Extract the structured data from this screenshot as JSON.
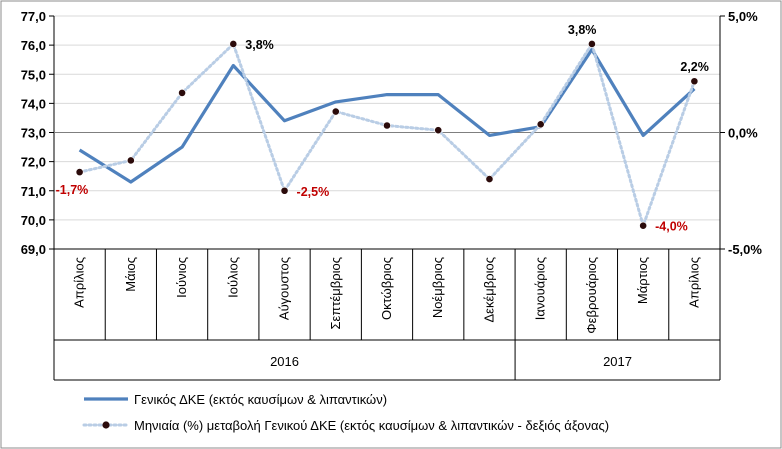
{
  "chart_data": {
    "type": "line",
    "categories": [
      "Απρίλιος",
      "Μάιος",
      "Ιούνιος",
      "Ιούλιος",
      "Αύγουστος",
      "Σεπτέμβριος",
      "Οκτώβριος",
      "Νοέμβριος",
      "Δεκέμβριος",
      "Ιανουάριος",
      "Φεβρουάριος",
      "Μάρτιος",
      "Απρίλιος"
    ],
    "year_groups": [
      {
        "label": "2016",
        "start": 0,
        "end": 8
      },
      {
        "label": "2017",
        "start": 9,
        "end": 12
      }
    ],
    "series": [
      {
        "name": "Γενικός ΔΚΕ (εκτός καυσίμων & λιπαντικών)",
        "axis": "left",
        "style": "solid",
        "color": "#4f81bd",
        "values": [
          72.4,
          71.3,
          72.5,
          75.3,
          73.4,
          74.05,
          74.3,
          74.3,
          72.9,
          73.2,
          75.85,
          72.9,
          74.5
        ]
      },
      {
        "name": "Μηνιαία (%) μεταβολή Γενικού ΔΚΕ (εκτός καυσίμων & λιπαντικών - δεξιός άξονας)",
        "axis": "right",
        "style": "dotted",
        "color": "#b9cde5",
        "marker_color": "#2b0b0b",
        "values": [
          -1.7,
          -1.2,
          1.7,
          3.8,
          -2.5,
          0.9,
          0.3,
          0.1,
          -2.0,
          0.35,
          3.8,
          -4.0,
          2.2
        ]
      }
    ],
    "data_labels": [
      {
        "index": 0,
        "text": "-1,7%",
        "color": "#c00000"
      },
      {
        "index": 3,
        "text": "3,8%",
        "color": "#000000"
      },
      {
        "index": 4,
        "text": "-2,5%",
        "color": "#c00000"
      },
      {
        "index": 10,
        "text": "3,8%",
        "color": "#000000"
      },
      {
        "index": 11,
        "text": "-4,0%",
        "color": "#c00000"
      },
      {
        "index": 12,
        "text": "2,2%",
        "color": "#000000"
      }
    ],
    "y_left": {
      "min": 69.0,
      "max": 77.0,
      "step": 1.0,
      "tick_labels": [
        "69,0",
        "70,0",
        "71,0",
        "72,0",
        "73,0",
        "74,0",
        "75,0",
        "76,0",
        "77,0"
      ]
    },
    "y_right": {
      "min": -5.0,
      "max": 5.0,
      "tick_values": [
        -5.0,
        0.0,
        5.0
      ],
      "tick_labels": [
        "-5,0%",
        "0,0%",
        "5,0%"
      ]
    },
    "title": "",
    "xlabel": "",
    "ylabel": "",
    "legend_position": "bottom-left"
  }
}
